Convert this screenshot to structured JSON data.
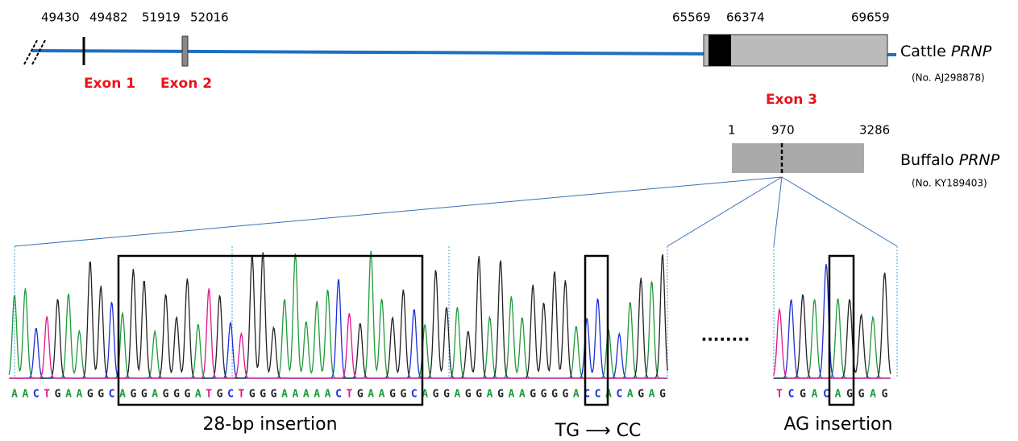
{
  "cattle": {
    "positions": [
      49430,
      49482,
      51919,
      52016,
      65569,
      66374,
      69659
    ],
    "exons": [
      "Exon 1",
      "Exon 2",
      "Exon 3"
    ],
    "species": "Cattle",
    "gene": "PRNP",
    "accession": "(No. AJ298878)"
  },
  "buffalo": {
    "positions": [
      1,
      970,
      3286
    ],
    "species": "Buffalo",
    "gene": "PRNP",
    "accession": "(No. KY189403)"
  },
  "sequence_main": [
    "A",
    "A",
    "C",
    "T",
    "G",
    "A",
    "A",
    "G",
    "G",
    "C",
    "A",
    "G",
    "G",
    "A",
    "G",
    "G",
    "G",
    "A",
    "T",
    "G",
    "C",
    "T",
    "G",
    "G",
    "G",
    "A",
    "A",
    "A",
    "A",
    "A",
    "C",
    "T",
    "G",
    "A",
    "A",
    "G",
    "G",
    "C",
    "A",
    "G",
    "G",
    "A",
    "G",
    "G",
    "A",
    "G",
    "A",
    "A",
    "G",
    "G",
    "G",
    "G",
    "A",
    "C",
    "C",
    "A",
    "C",
    "A",
    "G",
    "A",
    "G"
  ],
  "sequence_right": [
    "T",
    "C",
    "G",
    "A",
    "C",
    "A",
    "G",
    "G",
    "A",
    "G"
  ],
  "ellipsis": "........",
  "annotations": [
    "28-bp insertion",
    "TG ⟶ CC",
    "AG insertion"
  ]
}
